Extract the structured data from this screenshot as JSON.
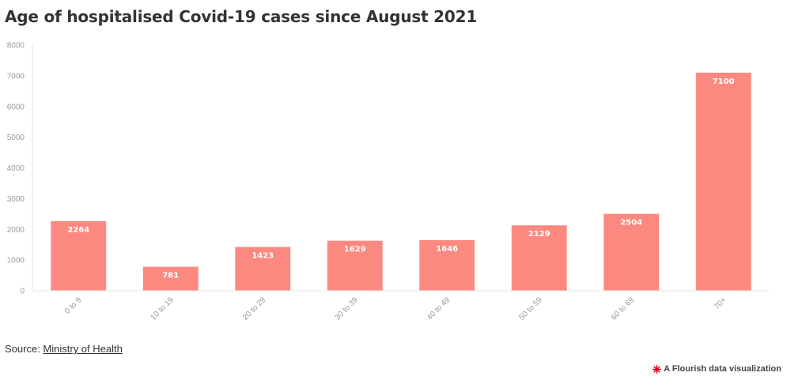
{
  "title": "Age of hospitalised Covid-19 cases since August 2021",
  "source": {
    "prefix": "Source: ",
    "link_text": "Ministry of Health"
  },
  "credit": {
    "text": "A Flourish data visualization",
    "icon": "flourish-logo-icon",
    "icon_color": "#e0001b"
  },
  "colors": {
    "bar": "#fc8980",
    "grid": "#e4e4e4",
    "axis_text": "#9a9a9a"
  },
  "chart_data": {
    "type": "bar",
    "title": "Age of hospitalised Covid-19 cases since August 2021",
    "categories": [
      "0 to 9",
      "10 to 19",
      "20 to 29",
      "30 to 39",
      "40 to 49",
      "50 to 59",
      "60 to 69",
      "70+"
    ],
    "values": [
      2264,
      781,
      1423,
      1629,
      1646,
      2129,
      2504,
      7100
    ],
    "data_labels": [
      "2264",
      "781",
      "1423",
      "1629",
      "1646",
      "2129",
      "2504",
      "7100"
    ],
    "xlabel": "",
    "ylabel": "",
    "ylim": [
      0,
      8000
    ],
    "yticks": [
      0,
      1000,
      2000,
      3000,
      4000,
      5000,
      6000,
      7000,
      8000
    ],
    "ytick_labels": [
      "0",
      "1000",
      "2000",
      "3000",
      "4000",
      "5000",
      "6000",
      "7000",
      "8000"
    ],
    "grid": false,
    "legend": "none",
    "xtick_rotation": "diagonal"
  }
}
